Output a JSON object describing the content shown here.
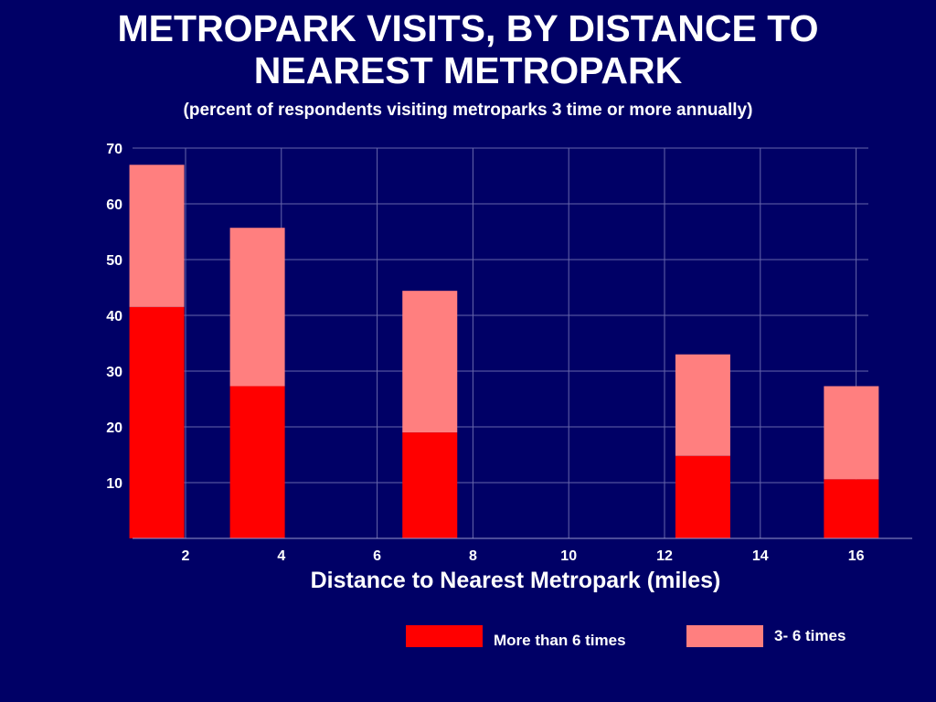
{
  "chart_data": {
    "type": "bar",
    "stacked": true,
    "title_lines": [
      "METROPARK VISITS, BY DISTANCE TO",
      "NEAREST METROPARK"
    ],
    "subtitle": "(percent of respondents visiting metroparks 3 time or more annually)",
    "xlabel": "Distance to Nearest Metropark (miles)",
    "ylabel": "",
    "x_ticks": [
      2,
      4,
      6,
      8,
      10,
      12,
      14,
      16
    ],
    "y_ticks": [
      10,
      20,
      30,
      40,
      50,
      60,
      70
    ],
    "ylim": [
      0,
      70
    ],
    "grid": true,
    "x": [
      1.4,
      3.5,
      7.1,
      12.8,
      15.9
    ],
    "series": [
      {
        "name": "More than 6 times",
        "color": "#ff0000",
        "values": [
          41.5,
          27.3,
          19.0,
          14.8,
          10.6
        ]
      },
      {
        "name": "3- 6 times",
        "color": "#ff7f7f",
        "values": [
          25.5,
          28.4,
          25.4,
          18.2,
          16.7
        ]
      }
    ],
    "legend_position": "bottom-right"
  },
  "colors": {
    "background": "#000066",
    "grid": "#6666aa",
    "text": "#ffffff"
  }
}
